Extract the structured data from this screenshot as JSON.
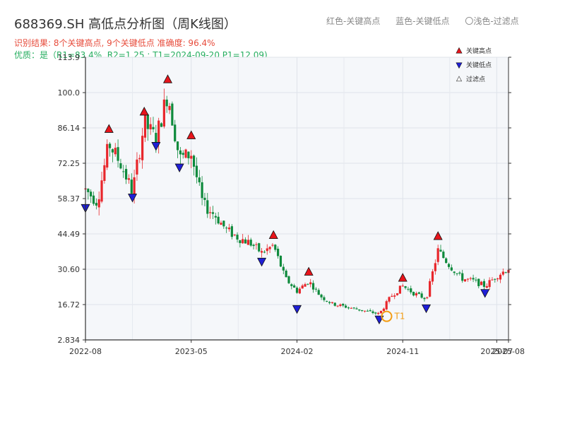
{
  "header": {
    "title": "688369.SH 高低点分析图（周K线图）",
    "result": "识别结果: 8个关键高点, 9个关键低点   准确度: 96.4%",
    "quality": "优质：是（R1=83.4%, R2=1.25 ; T1=2024-09-20 P1=12.09)"
  },
  "top_legend": {
    "red": "红色-关键高点",
    "blue": "蓝色-关键低点",
    "light": "〇浅色-过滤点"
  },
  "colors": {
    "up": "#e8262b",
    "down": "#0e8a3c",
    "high_marker": "#e8141b",
    "low_marker": "#1f1fd6",
    "t1": "#f39c12"
  },
  "chart_data": {
    "type": "candlestick",
    "title": "688369.SH 高低点分析图（周K线图）",
    "ylim": [
      2.834,
      113.9
    ],
    "y_ticks": [
      "2.834",
      "16.72",
      "30.60",
      "44.49",
      "58.37",
      "72.25",
      "86.14",
      "100.0",
      "113.9"
    ],
    "x_ticks": [
      "2022-08",
      "2023-05",
      "2024-02",
      "2024-11",
      "2025-07",
      "2025-08"
    ],
    "x_range": [
      "2022-08",
      "2025-08"
    ],
    "legend": {
      "position": "top-right",
      "entries": [
        "关键高点",
        "关键低点",
        "过滤点"
      ]
    },
    "key_highs": [
      {
        "date": "2022-10",
        "price": 84.5
      },
      {
        "date": "2023-01",
        "price": 91.3
      },
      {
        "date": "2023-03",
        "price": 104.0
      },
      {
        "date": "2023-05",
        "price": 82.0
      },
      {
        "date": "2023-12",
        "price": 42.8
      },
      {
        "date": "2024-03",
        "price": 28.4
      },
      {
        "date": "2024-11",
        "price": 26.0
      },
      {
        "date": "2025-02",
        "price": 42.4
      }
    ],
    "key_lows": [
      {
        "date": "2022-08",
        "price": 55.9
      },
      {
        "date": "2022-12",
        "price": 60.0
      },
      {
        "date": "2023-02",
        "price": 80.3
      },
      {
        "date": "2023-04",
        "price": 71.8
      },
      {
        "date": "2023-11",
        "price": 34.8
      },
      {
        "date": "2024-02",
        "price": 16.2
      },
      {
        "date": "2024-09",
        "price": 12.09
      },
      {
        "date": "2025-01",
        "price": 16.5
      },
      {
        "date": "2025-06",
        "price": 22.5
      }
    ],
    "t1": {
      "label": "T1",
      "date": "2024-09-20",
      "price": 12.09
    },
    "candle_path": [
      [
        "2022-08",
        62
      ],
      [
        "2022-09",
        57
      ],
      [
        "2022-10",
        80
      ],
      [
        "2022-11",
        72
      ],
      [
        "2022-12",
        61
      ],
      [
        "2023-01",
        88
      ],
      [
        "2023-02",
        82
      ],
      [
        "2023-03",
        100
      ],
      [
        "2023-04",
        74
      ],
      [
        "2023-05",
        76
      ],
      [
        "2023-06",
        56
      ],
      [
        "2023-07",
        52
      ],
      [
        "2023-08",
        46
      ],
      [
        "2023-09",
        43
      ],
      [
        "2023-10",
        41
      ],
      [
        "2023-11",
        37
      ],
      [
        "2023-12",
        40
      ],
      [
        "2024-01",
        27
      ],
      [
        "2024-02",
        22
      ],
      [
        "2024-03",
        26
      ],
      [
        "2024-04",
        20
      ],
      [
        "2024-05",
        17
      ],
      [
        "2024-06",
        16
      ],
      [
        "2024-07",
        15
      ],
      [
        "2024-08",
        14
      ],
      [
        "2024-09",
        13
      ],
      [
        "2024-10",
        20
      ],
      [
        "2024-11",
        24
      ],
      [
        "2024-12",
        21
      ],
      [
        "2025-01",
        19
      ],
      [
        "2025-02",
        38
      ],
      [
        "2025-03",
        32
      ],
      [
        "2025-04",
        27
      ],
      [
        "2025-05",
        26
      ],
      [
        "2025-06",
        24
      ],
      [
        "2025-07",
        28
      ],
      [
        "2025-08",
        31
      ]
    ]
  }
}
